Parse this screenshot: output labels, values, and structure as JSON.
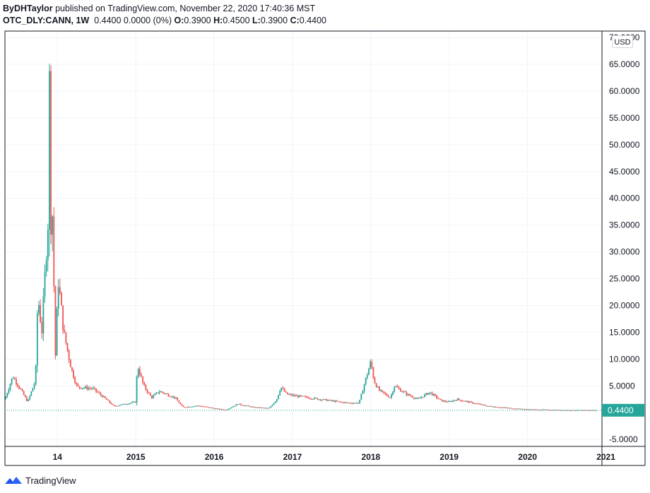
{
  "header": {
    "author": "ByDHTaylor",
    "published_text": "published on TradingView.com, November 22, 2020 17:40:36 MST",
    "symbol": "OTC_DLY:CANN, 1W",
    "last": "0.4400",
    "change": "0.0000 (0%)",
    "open_label": "O:",
    "open": "0.3900",
    "high_label": "H:",
    "high": "0.4500",
    "low_label": "L:",
    "low": "0.3900",
    "close_label": "C:",
    "close": "0.4400"
  },
  "currency_label": "USD",
  "footer": {
    "brand": "TradingView",
    "logo_icon": "tradingview-logo-icon"
  },
  "colors": {
    "up": "#26a69a",
    "down": "#ef5350",
    "grid": "#f0f3fa",
    "border": "#131722",
    "last_price_bg": "#26a69a"
  },
  "chart_data": {
    "type": "candlestick",
    "title": "",
    "xlabel": "",
    "ylabel": "",
    "y_axis_labels": [
      "-5.0000",
      "5.0000",
      "10.0000",
      "15.0000",
      "20.0000",
      "25.0000",
      "30.0000",
      "35.0000",
      "40.0000",
      "45.0000",
      "50.0000",
      "55.0000",
      "60.0000",
      "65.0000",
      "70.0000"
    ],
    "y_ticks": [
      -5,
      5,
      10,
      15,
      20,
      25,
      30,
      35,
      40,
      45,
      50,
      55,
      60,
      65,
      70
    ],
    "ylim": [
      -6.3,
      71.2
    ],
    "x_axis_labels": [
      "14",
      "2015",
      "2016",
      "2017",
      "2018",
      "2019",
      "2020",
      "2021"
    ],
    "x_ticks": [
      2014.0,
      2015.0,
      2016.0,
      2017.0,
      2018.0,
      2019.0,
      2020.0,
      2021.0
    ],
    "xlim": [
      2013.33,
      2020.95
    ],
    "last_price_label": "0.4400",
    "last_price": 0.44,
    "key_points": [
      {
        "date": "2013.33",
        "value": 2.5
      },
      {
        "date": "2013.43",
        "value": 6.8
      },
      {
        "date": "2013.55",
        "value": 3.8
      },
      {
        "date": "2013.62",
        "value": 2.0
      },
      {
        "date": "2013.72",
        "value": 6.0
      },
      {
        "date": "2013.75",
        "value": 22.0
      },
      {
        "date": "2013.80",
        "value": 15.0
      },
      {
        "date": "2013.88",
        "value": 36.0
      },
      {
        "date": "2013.895",
        "value": 64.8
      },
      {
        "date": "2013.92",
        "value": 31.0
      },
      {
        "date": "2013.94",
        "value": 38.5
      },
      {
        "date": "2013.97",
        "value": 9.0
      },
      {
        "date": "2014.01",
        "value": 25.0
      },
      {
        "date": "2014.08",
        "value": 15.0
      },
      {
        "date": "2014.18",
        "value": 8.0
      },
      {
        "date": "2014.25",
        "value": 4.8
      },
      {
        "date": "2014.45",
        "value": 4.5
      },
      {
        "date": "2014.62",
        "value": 2.5
      },
      {
        "date": "2014.72",
        "value": 1.2
      },
      {
        "date": "2015.00",
        "value": 2.0
      },
      {
        "date": "2015.02",
        "value": 9.0
      },
      {
        "date": "2015.10",
        "value": 5.0
      },
      {
        "date": "2015.20",
        "value": 2.8
      },
      {
        "date": "2015.30",
        "value": 4.0
      },
      {
        "date": "2015.50",
        "value": 2.8
      },
      {
        "date": "2015.60",
        "value": 1.0
      },
      {
        "date": "2015.80",
        "value": 1.3
      },
      {
        "date": "2016.00",
        "value": 0.8
      },
      {
        "date": "2016.15",
        "value": 0.5
      },
      {
        "date": "2016.30",
        "value": 1.6
      },
      {
        "date": "2016.50",
        "value": 1.0
      },
      {
        "date": "2016.70",
        "value": 0.8
      },
      {
        "date": "2016.80",
        "value": 2.5
      },
      {
        "date": "2016.85",
        "value": 4.8
      },
      {
        "date": "2016.92",
        "value": 3.5
      },
      {
        "date": "2017.00",
        "value": 3.2
      },
      {
        "date": "2017.30",
        "value": 2.6
      },
      {
        "date": "2017.50",
        "value": 2.2
      },
      {
        "date": "2017.70",
        "value": 1.8
      },
      {
        "date": "2017.85",
        "value": 1.8
      },
      {
        "date": "2017.93",
        "value": 6.0
      },
      {
        "date": "2018.00",
        "value": 9.5
      },
      {
        "date": "2018.04",
        "value": 6.0
      },
      {
        "date": "2018.10",
        "value": 4.2
      },
      {
        "date": "2018.25",
        "value": 2.8
      },
      {
        "date": "2018.30",
        "value": 5.0
      },
      {
        "date": "2018.45",
        "value": 3.5
      },
      {
        "date": "2018.60",
        "value": 2.5
      },
      {
        "date": "2018.75",
        "value": 3.8
      },
      {
        "date": "2018.90",
        "value": 2.2
      },
      {
        "date": "2019.00",
        "value": 2.0
      },
      {
        "date": "2019.10",
        "value": 2.5
      },
      {
        "date": "2019.30",
        "value": 1.8
      },
      {
        "date": "2019.50",
        "value": 1.2
      },
      {
        "date": "2019.80",
        "value": 0.8
      },
      {
        "date": "2020.00",
        "value": 0.6
      },
      {
        "date": "2020.50",
        "value": 0.45
      },
      {
        "date": "2020.89",
        "value": 0.44
      }
    ],
    "grid": true
  }
}
